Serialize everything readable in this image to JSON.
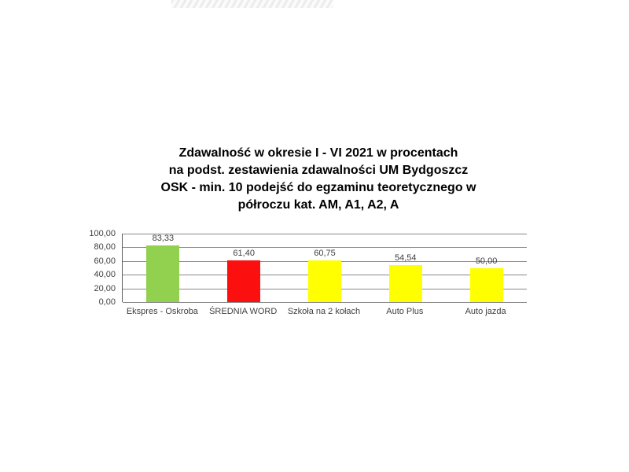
{
  "title": {
    "lines": [
      "Zdawalność w okresie I - VI 2021 w procentach",
      "na podst. zestawienia zdawalności UM Bydgoszcz",
      "OSK - min. 10 podejść do egzaminu teoretycznego w",
      "półroczu kat. AM, A1, A2, A"
    ]
  },
  "chart_data": {
    "type": "bar",
    "title": "Zdawalność w okresie I - VI 2021 w procentach na podst. zestawienia zdawalności UM Bydgoszcz OSK - min. 10 podejść do egzaminu teoretycznego w półroczu kat. AM, A1, A2, A",
    "categories": [
      "Ekspres - Oskroba",
      "ŚREDNIA WORD",
      "Szkoła na 2 kołach",
      "Auto Plus",
      "Auto jazda"
    ],
    "values": [
      83.33,
      61.4,
      60.75,
      54.54,
      50.0
    ],
    "value_labels": [
      "83,33",
      "61,40",
      "60,75",
      "54,54",
      "50,00"
    ],
    "bar_colors": [
      "#92D050",
      "#FB0F0F",
      "#FFFF00",
      "#FFFF00",
      "#FFFF00"
    ],
    "y_ticks": [
      "100,00",
      "80,00",
      "60,00",
      "40,00",
      "20,00",
      "0,00"
    ],
    "y_tick_values": [
      100,
      80,
      60,
      40,
      20,
      0
    ],
    "ylim": [
      0,
      100
    ],
    "xlabel": "",
    "ylabel": "",
    "grid": "horizontal",
    "legend": "none",
    "colors": {
      "grid_line": "#8a8a8a",
      "axis_line": "#595959",
      "label_text": "#404040",
      "title_text": "#000000"
    }
  }
}
